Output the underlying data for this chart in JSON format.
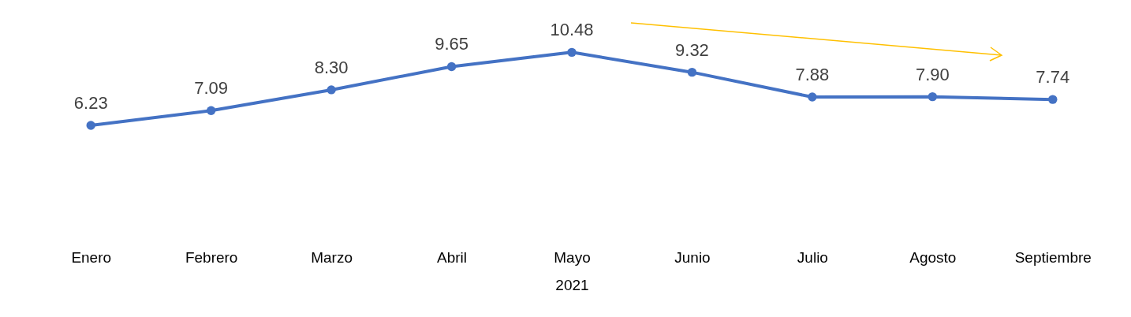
{
  "chart_data": {
    "type": "line",
    "xlabel": "2021",
    "categories": [
      "Enero",
      "Febrero",
      "Marzo",
      "Abril",
      "Mayo",
      "Junio",
      "Julio",
      "Agosto",
      "Septiembre"
    ],
    "series": [
      {
        "color": "#4472c4",
        "values": [
          6.23,
          7.09,
          8.3,
          9.65,
          10.48,
          9.32,
          7.88,
          7.9,
          7.74
        ],
        "value_labels": [
          "6.23",
          "7.09",
          "8.30",
          "9.65",
          "10.48",
          "9.32",
          "7.88",
          "7.90",
          "7.74"
        ]
      }
    ],
    "tick_labels": "x",
    "marker": "circle",
    "grid": false,
    "legend": false
  }
}
